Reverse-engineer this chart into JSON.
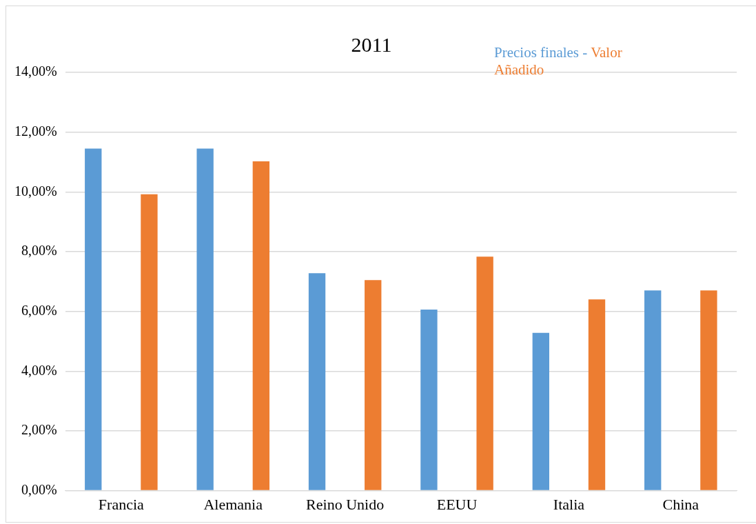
{
  "chart_data": {
    "type": "bar",
    "title": "2011",
    "categories": [
      "Francia",
      "Alemania",
      "Reino Unido",
      "EEUU",
      "Italia",
      "China"
    ],
    "series": [
      {
        "name": "Precios finales -",
        "color": "#5b9bd5",
        "values": [
          11.45,
          11.45,
          7.28,
          6.06,
          5.28,
          6.7
        ]
      },
      {
        "name": "Valor Añadido",
        "color": "#ed7d31",
        "values": [
          9.92,
          11.02,
          7.05,
          7.83,
          6.4,
          6.7
        ]
      }
    ],
    "ylim": [
      0,
      14
    ],
    "yticks": [
      {
        "value": 0,
        "label": "0,00%"
      },
      {
        "value": 2,
        "label": "2,00%"
      },
      {
        "value": 4,
        "label": "4,00%"
      },
      {
        "value": 6,
        "label": "6,00%"
      },
      {
        "value": 8,
        "label": "8,00%"
      },
      {
        "value": 10,
        "label": "10,00%"
      },
      {
        "value": 12,
        "label": "12,00%"
      },
      {
        "value": 14,
        "label": "14,00%"
      }
    ],
    "grid": "y",
    "legend": "top right"
  }
}
